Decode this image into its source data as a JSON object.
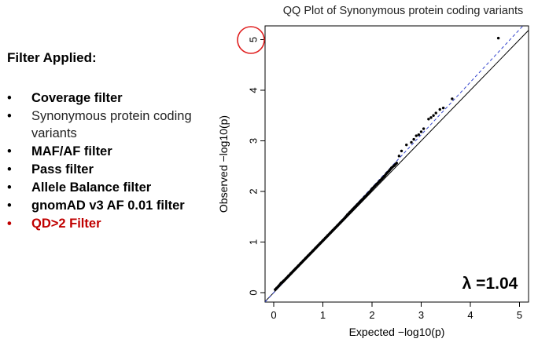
{
  "slide": {
    "heading": "Filter Applied:",
    "bullet_symbol": "•",
    "filters": [
      {
        "label": "Coverage filter",
        "style": "bold"
      },
      {
        "label": "Synonymous protein coding variants",
        "style": "normal"
      },
      {
        "label": "MAF/AF filter",
        "style": "bold"
      },
      {
        "label": "Pass filter",
        "style": "bold"
      },
      {
        "label": "Allele Balance filter",
        "style": "bold"
      },
      {
        "label": "gnomAD v3 AF 0.01 filter",
        "style": "bold"
      },
      {
        "label": "QD>2 Filter",
        "style": "highlight"
      }
    ],
    "highlight_color": "#c00000",
    "circle_color": "#e02020"
  },
  "chart_data": {
    "type": "scatter",
    "title": "QQ Plot of Synonymous protein coding variants",
    "xlabel": "Expected −log10(p)",
    "ylabel": "Observed −log10(p)",
    "xlim": [
      0,
      5
    ],
    "ylim": [
      0,
      5
    ],
    "x_ticks": [
      "0",
      "1",
      "2",
      "3",
      "4",
      "5"
    ],
    "y_ticks": [
      "0",
      "1",
      "2",
      "3",
      "4",
      "5"
    ],
    "annotation": "λ =1.04",
    "reference_line": {
      "slope": 1,
      "color": "#000000"
    },
    "fit_line": {
      "slope": 1.04,
      "color": "#3344cc",
      "style": "dashed"
    },
    "lambda": 1.04,
    "grid": false,
    "points_color": "#000000",
    "highlighted_tick": "5",
    "points": [
      [
        0.03,
        0.06
      ],
      [
        0.06,
        0.09
      ],
      [
        0.1,
        0.13
      ],
      [
        0.15,
        0.19
      ],
      [
        0.2,
        0.23
      ],
      [
        0.25,
        0.28
      ],
      [
        0.3,
        0.33
      ],
      [
        0.35,
        0.38
      ],
      [
        0.4,
        0.43
      ],
      [
        0.45,
        0.48
      ],
      [
        0.5,
        0.53
      ],
      [
        0.55,
        0.58
      ],
      [
        0.6,
        0.63
      ],
      [
        0.65,
        0.68
      ],
      [
        0.7,
        0.73
      ],
      [
        0.75,
        0.78
      ],
      [
        0.8,
        0.83
      ],
      [
        0.85,
        0.88
      ],
      [
        0.9,
        0.93
      ],
      [
        0.95,
        0.98
      ],
      [
        1.0,
        1.03
      ],
      [
        1.05,
        1.08
      ],
      [
        1.1,
        1.13
      ],
      [
        1.15,
        1.18
      ],
      [
        1.2,
        1.23
      ],
      [
        1.25,
        1.28
      ],
      [
        1.3,
        1.33
      ],
      [
        1.35,
        1.38
      ],
      [
        1.4,
        1.43
      ],
      [
        1.45,
        1.48
      ],
      [
        1.5,
        1.54
      ],
      [
        1.55,
        1.59
      ],
      [
        1.6,
        1.64
      ],
      [
        1.65,
        1.69
      ],
      [
        1.7,
        1.74
      ],
      [
        1.75,
        1.79
      ],
      [
        1.8,
        1.84
      ],
      [
        1.85,
        1.89
      ],
      [
        1.9,
        1.94
      ],
      [
        1.95,
        1.99
      ],
      [
        2.0,
        2.05
      ],
      [
        2.05,
        2.1
      ],
      [
        2.1,
        2.15
      ],
      [
        2.15,
        2.2
      ],
      [
        2.2,
        2.25
      ],
      [
        2.25,
        2.3
      ],
      [
        2.3,
        2.36
      ],
      [
        2.35,
        2.41
      ],
      [
        2.4,
        2.47
      ],
      [
        2.45,
        2.51
      ],
      [
        2.5,
        2.56
      ],
      [
        2.55,
        2.7
      ],
      [
        2.6,
        2.8
      ],
      [
        2.7,
        2.92
      ],
      [
        2.8,
        2.97
      ],
      [
        2.85,
        3.03
      ],
      [
        2.9,
        3.1
      ],
      [
        2.95,
        3.12
      ],
      [
        3.0,
        3.18
      ],
      [
        3.05,
        3.24
      ],
      [
        3.15,
        3.43
      ],
      [
        3.2,
        3.46
      ],
      [
        3.25,
        3.5
      ],
      [
        3.3,
        3.55
      ],
      [
        3.38,
        3.62
      ],
      [
        3.45,
        3.65
      ],
      [
        3.63,
        3.83
      ],
      [
        4.57,
        5.03
      ]
    ]
  }
}
